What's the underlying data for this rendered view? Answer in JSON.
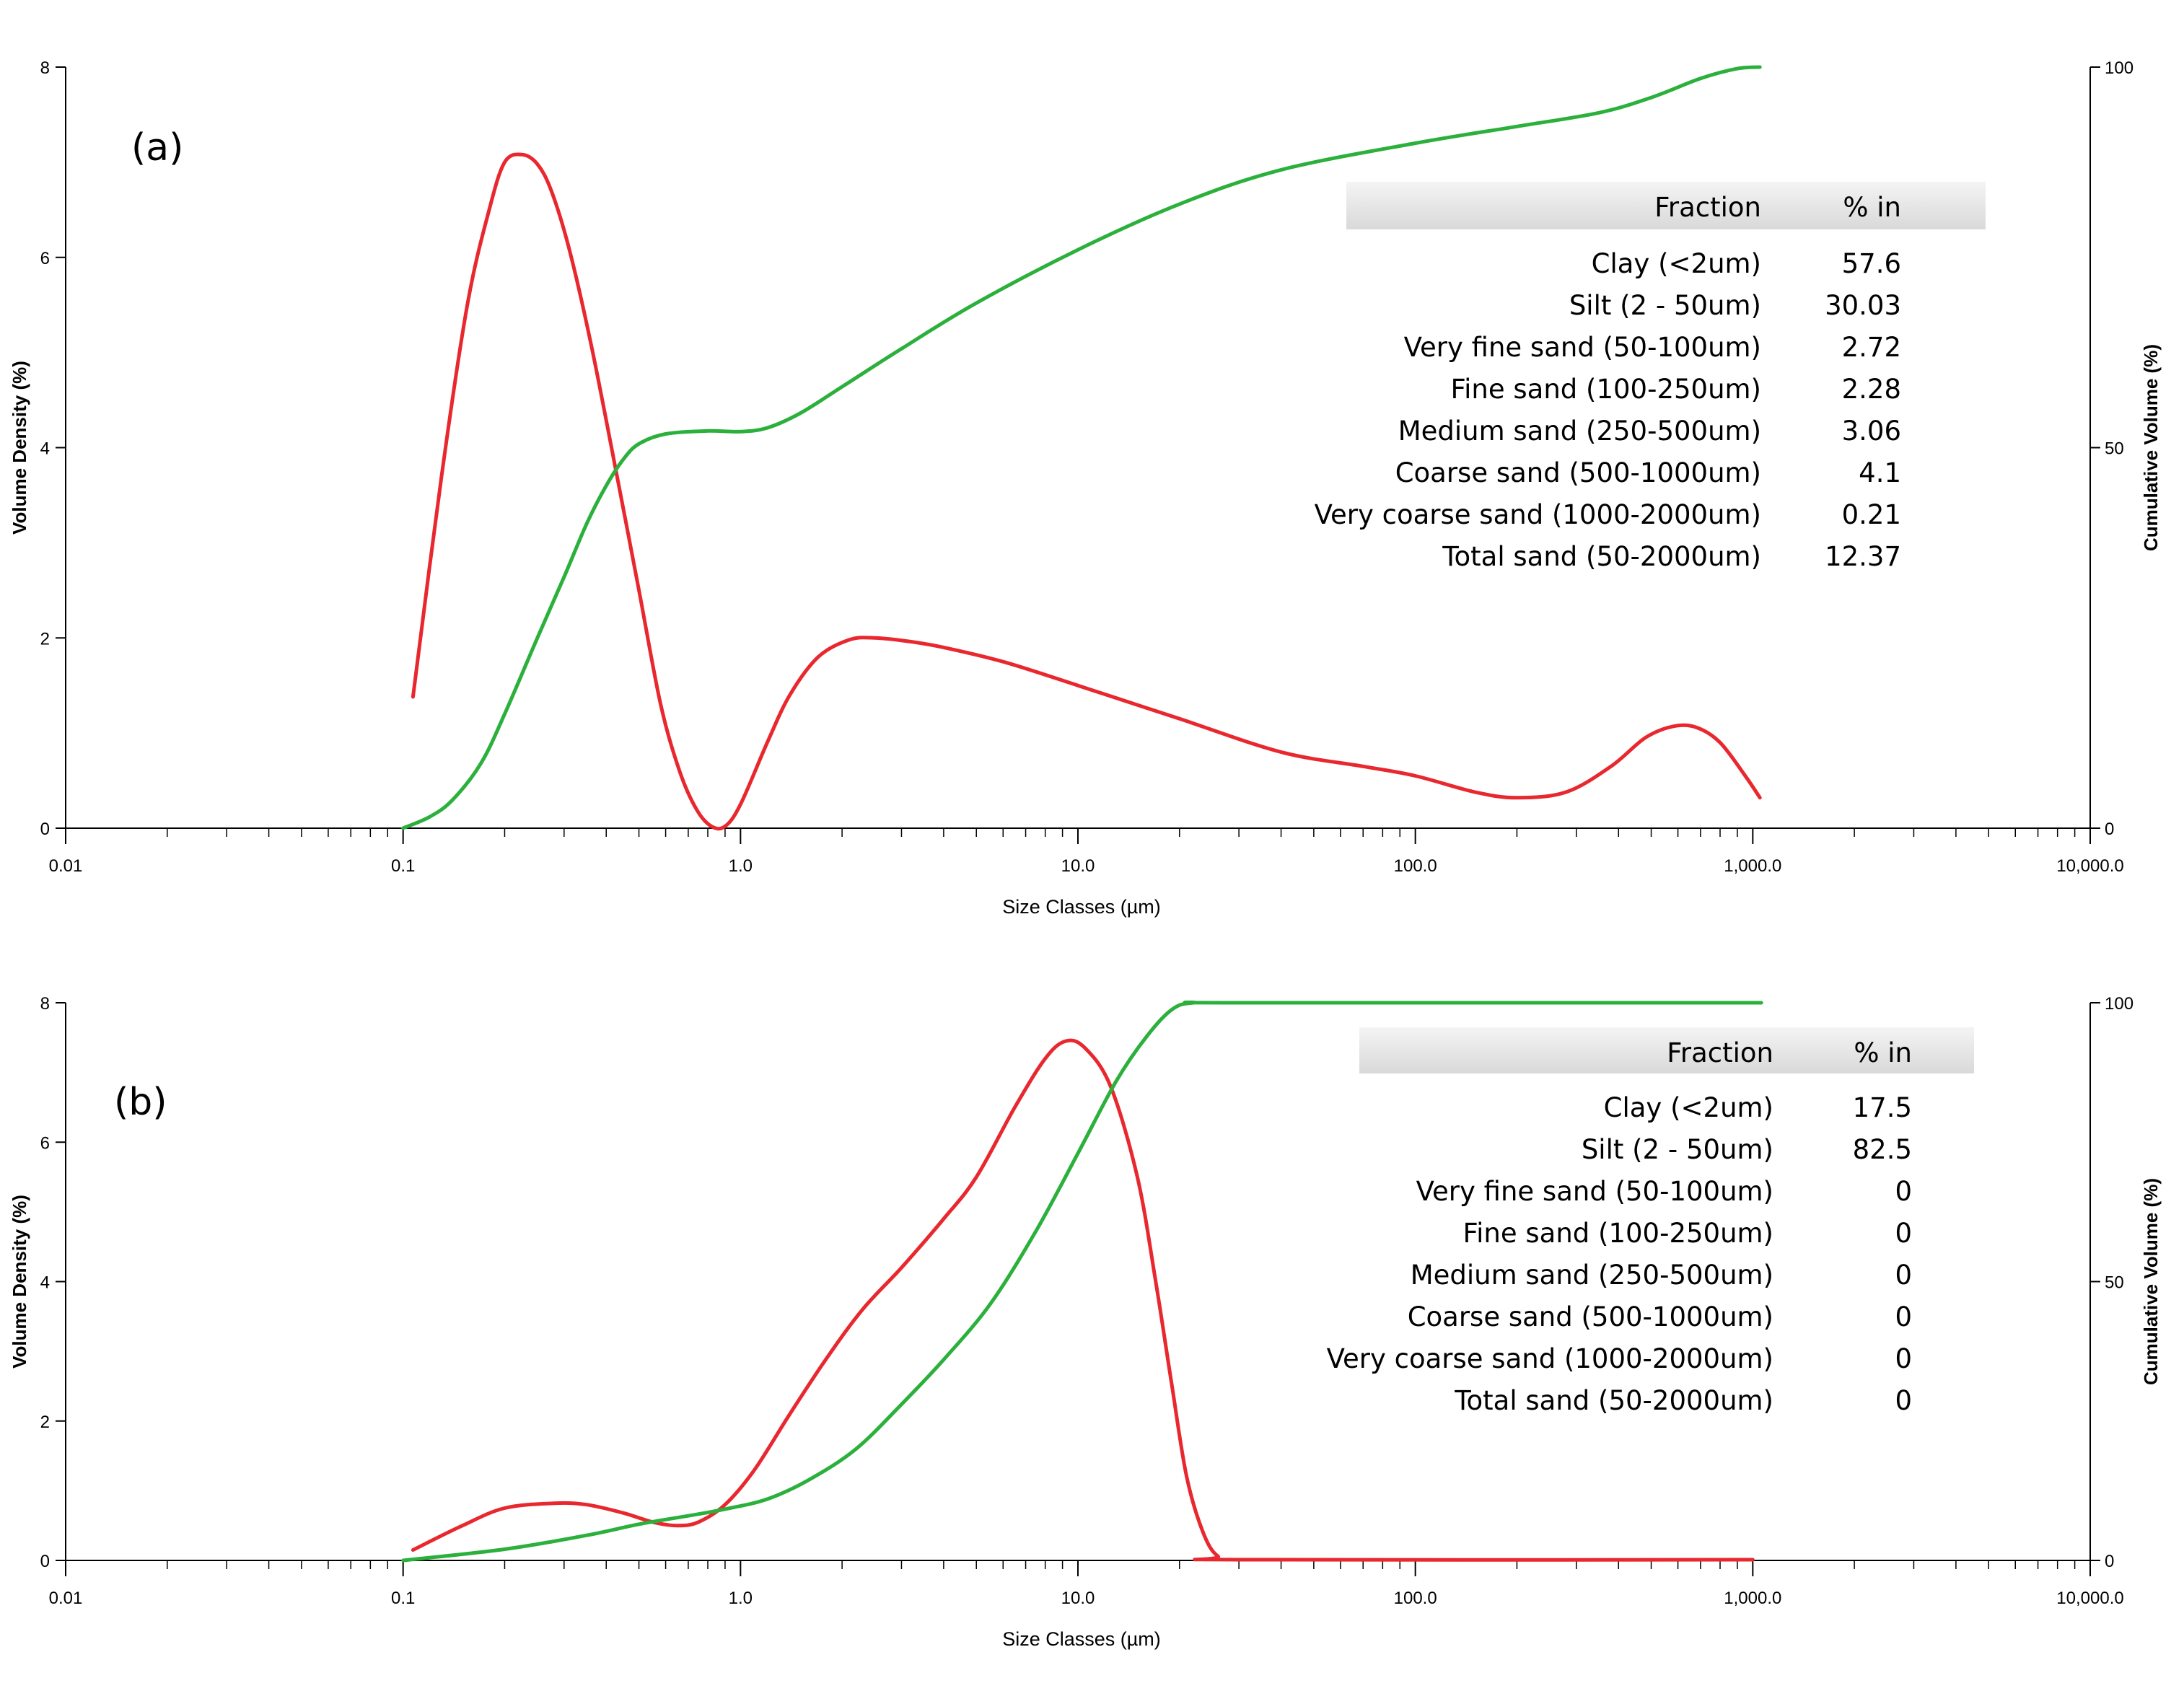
{
  "chart_data": [
    {
      "type": "line",
      "panel_label": "(a)",
      "xlabel": "Size Classes (µm)",
      "ylabel_left": "Volume Density (%)",
      "ylabel_right": "Cumulative Volume (%)",
      "x_scale": "log",
      "xlim": [
        0.01,
        10000
      ],
      "ylim_left": [
        0,
        8
      ],
      "ylim_right": [
        0,
        100
      ],
      "x_ticks": [
        {
          "value": 0.01,
          "label": "0.01"
        },
        {
          "value": 0.1,
          "label": "0.1"
        },
        {
          "value": 1,
          "label": "1.0"
        },
        {
          "value": 10,
          "label": "10.0"
        },
        {
          "value": 100,
          "label": "100.0"
        },
        {
          "value": 1000,
          "label": "1,000.0"
        },
        {
          "value": 10000,
          "label": "10,000.0"
        }
      ],
      "y_left_ticks": [
        {
          "value": 0,
          "label": "0"
        },
        {
          "value": 2,
          "label": "2"
        },
        {
          "value": 4,
          "label": "4"
        },
        {
          "value": 6,
          "label": "6"
        },
        {
          "value": 8,
          "label": "8"
        }
      ],
      "y_right_ticks": [
        {
          "value": 0,
          "label": "0"
        },
        {
          "value": 50,
          "label": "50"
        },
        {
          "value": 100,
          "label": "100"
        }
      ],
      "series": [
        {
          "name": "Volume Density",
          "axis": "left",
          "color": "#e8282e",
          "points": [
            [
              0.107,
              1.38
            ],
            [
              0.13,
              3.7
            ],
            [
              0.155,
              5.5
            ],
            [
              0.18,
              6.5
            ],
            [
              0.2,
              7.0
            ],
            [
              0.225,
              7.08
            ],
            [
              0.25,
              6.98
            ],
            [
              0.275,
              6.7
            ],
            [
              0.31,
              6.1
            ],
            [
              0.36,
              5.1
            ],
            [
              0.42,
              3.9
            ],
            [
              0.5,
              2.5
            ],
            [
              0.58,
              1.3
            ],
            [
              0.66,
              0.6
            ],
            [
              0.74,
              0.2
            ],
            [
              0.82,
              0.02
            ],
            [
              0.9,
              0.02
            ],
            [
              1.0,
              0.25
            ],
            [
              1.2,
              0.9
            ],
            [
              1.4,
              1.4
            ],
            [
              1.7,
              1.8
            ],
            [
              2.1,
              1.98
            ],
            [
              2.5,
              2.0
            ],
            [
              3.2,
              1.96
            ],
            [
              4,
              1.9
            ],
            [
              6,
              1.75
            ],
            [
              10,
              1.5
            ],
            [
              20,
              1.15
            ],
            [
              40,
              0.8
            ],
            [
              70,
              0.65
            ],
            [
              100,
              0.55
            ],
            [
              150,
              0.38
            ],
            [
              200,
              0.32
            ],
            [
              280,
              0.38
            ],
            [
              380,
              0.65
            ],
            [
              480,
              0.95
            ],
            [
              580,
              1.07
            ],
            [
              680,
              1.06
            ],
            [
              800,
              0.9
            ],
            [
              950,
              0.55
            ],
            [
              1050,
              0.32
            ]
          ]
        },
        {
          "name": "Cumulative Volume",
          "axis": "right",
          "color": "#2bb03c",
          "points": [
            [
              0.1,
              0
            ],
            [
              0.12,
              1.5
            ],
            [
              0.14,
              3.7
            ],
            [
              0.17,
              8.5
            ],
            [
              0.2,
              15
            ],
            [
              0.25,
              25
            ],
            [
              0.3,
              33
            ],
            [
              0.35,
              40
            ],
            [
              0.4,
              45
            ],
            [
              0.45,
              48.5
            ],
            [
              0.5,
              50.5
            ],
            [
              0.6,
              51.8
            ],
            [
              0.8,
              52.2
            ],
            [
              1.0,
              52.1
            ],
            [
              1.2,
              52.6
            ],
            [
              1.5,
              54.5
            ],
            [
              2,
              58
            ],
            [
              3,
              63
            ],
            [
              5,
              69
            ],
            [
              10,
              76
            ],
            [
              20,
              82
            ],
            [
              40,
              86.5
            ],
            [
              100,
              90
            ],
            [
              200,
              92.2
            ],
            [
              350,
              94
            ],
            [
              500,
              96
            ],
            [
              700,
              98.5
            ],
            [
              900,
              99.8
            ],
            [
              1050,
              100
            ]
          ]
        }
      ],
      "table": {
        "headers": [
          "Fraction",
          "% in"
        ],
        "rows": [
          [
            "Clay (<2um)",
            "57.6"
          ],
          [
            "Silt (2 - 50um)",
            "30.03"
          ],
          [
            "Very fine sand (50-100um)",
            "2.72"
          ],
          [
            "Fine sand (100-250um)",
            "2.28"
          ],
          [
            "Medium sand (250-500um)",
            "3.06"
          ],
          [
            "Coarse sand (500-1000um)",
            "4.1"
          ],
          [
            "Very coarse sand (1000-2000um)",
            "0.21"
          ],
          [
            "Total sand (50-2000um)",
            "12.37"
          ]
        ]
      }
    },
    {
      "type": "line",
      "panel_label": "(b)",
      "xlabel": "Size Classes (µm)",
      "ylabel_left": "Volume Density (%)",
      "ylabel_right": "Cumulative Volume (%)",
      "x_scale": "log",
      "xlim": [
        0.01,
        10000
      ],
      "ylim_left": [
        0,
        8
      ],
      "ylim_right": [
        0,
        100
      ],
      "x_ticks": [
        {
          "value": 0.01,
          "label": "0.01"
        },
        {
          "value": 0.1,
          "label": "0.1"
        },
        {
          "value": 1,
          "label": "1.0"
        },
        {
          "value": 10,
          "label": "10.0"
        },
        {
          "value": 100,
          "label": "100.0"
        },
        {
          "value": 1000,
          "label": "1,000.0"
        },
        {
          "value": 10000,
          "label": "10,000.0"
        }
      ],
      "y_left_ticks": [
        {
          "value": 0,
          "label": "0"
        },
        {
          "value": 2,
          "label": "2"
        },
        {
          "value": 4,
          "label": "4"
        },
        {
          "value": 6,
          "label": "6"
        },
        {
          "value": 8,
          "label": "8"
        }
      ],
      "y_right_ticks": [
        {
          "value": 0,
          "label": "0"
        },
        {
          "value": 50,
          "label": "50"
        },
        {
          "value": 100,
          "label": "100"
        }
      ],
      "series": [
        {
          "name": "Volume Density",
          "axis": "left",
          "color": "#e8282e",
          "points": [
            [
              0.107,
              0.15
            ],
            [
              0.15,
              0.5
            ],
            [
              0.2,
              0.75
            ],
            [
              0.28,
              0.82
            ],
            [
              0.35,
              0.8
            ],
            [
              0.45,
              0.68
            ],
            [
              0.55,
              0.55
            ],
            [
              0.65,
              0.5
            ],
            [
              0.75,
              0.55
            ],
            [
              0.9,
              0.8
            ],
            [
              1.1,
              1.3
            ],
            [
              1.4,
              2.1
            ],
            [
              1.8,
              2.9
            ],
            [
              2.3,
              3.6
            ],
            [
              3,
              4.2
            ],
            [
              4,
              4.9
            ],
            [
              5,
              5.5
            ],
            [
              6.5,
              6.5
            ],
            [
              8,
              7.2
            ],
            [
              9.2,
              7.45
            ],
            [
              10.5,
              7.35
            ],
            [
              12.5,
              6.8
            ],
            [
              15,
              5.5
            ],
            [
              17,
              4.0
            ],
            [
              19,
              2.5
            ],
            [
              21,
              1.2
            ],
            [
              23.5,
              0.4
            ],
            [
              26,
              0.06
            ],
            [
              30,
              0.01
            ],
            [
              1000,
              0.01
            ]
          ]
        },
        {
          "name": "Cumulative Volume",
          "axis": "right",
          "color": "#2bb03c",
          "points": [
            [
              0.1,
              0
            ],
            [
              0.2,
              2
            ],
            [
              0.35,
              4.5
            ],
            [
              0.5,
              6.5
            ],
            [
              0.7,
              8
            ],
            [
              0.9,
              9.2
            ],
            [
              1.2,
              11
            ],
            [
              1.6,
              14.5
            ],
            [
              2.2,
              20
            ],
            [
              3,
              28
            ],
            [
              4,
              36
            ],
            [
              5.5,
              46
            ],
            [
              7.5,
              59
            ],
            [
              10,
              73
            ],
            [
              13,
              86
            ],
            [
              16,
              94
            ],
            [
              19,
              98.8
            ],
            [
              22,
              100
            ],
            [
              30,
              100
            ],
            [
              1060,
              100
            ]
          ]
        }
      ],
      "table": {
        "headers": [
          "Fraction",
          "% in"
        ],
        "rows": [
          [
            "Clay (<2um)",
            "17.5"
          ],
          [
            "Silt (2 - 50um)",
            "82.5"
          ],
          [
            "Very fine sand (50-100um)",
            "0"
          ],
          [
            "Fine sand (100-250um)",
            "0"
          ],
          [
            "Medium sand (250-500um)",
            "0"
          ],
          [
            "Coarse sand (500-1000um)",
            "0"
          ],
          [
            "Very coarse sand (1000-2000um)",
            "0"
          ],
          [
            "Total sand (50-2000um)",
            "0"
          ]
        ]
      }
    }
  ]
}
